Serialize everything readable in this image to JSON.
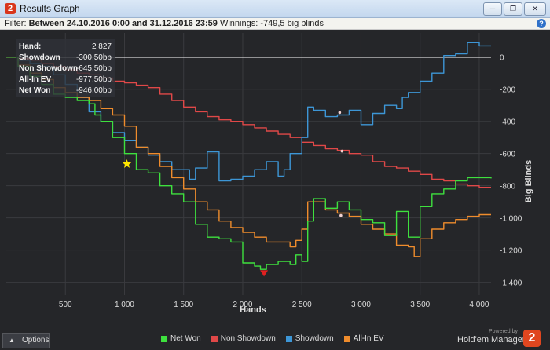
{
  "window": {
    "title": "Results Graph",
    "app_icon": "2"
  },
  "filter_bar": {
    "label": "Filter:",
    "range": "Between 24.10.2016 0:00 and 31.12.2016 23:59",
    "winnings": "Winnings: -749,5 big blinds"
  },
  "stats_panel": [
    {
      "key": "Hand:",
      "value": "2 827"
    },
    {
      "key": "Showdown",
      "value": "-300,50bb"
    },
    {
      "key": "Non Showdown",
      "value": "-645,50bb"
    },
    {
      "key": "All-In EV",
      "value": "-977,50bb"
    },
    {
      "key": "Net Won",
      "value": "-946,00bb"
    }
  ],
  "footer": {
    "options_label": "Options",
    "powered_by": "Powered by",
    "brand": "Hold'em Manager",
    "brand_icon": "2"
  },
  "colors": {
    "net_won": "#3ee03e",
    "non_showdown": "#e04848",
    "showdown": "#3d96d6",
    "all_in_ev": "#ef8c2c",
    "background": "#252629",
    "zero_line": "#ffffff",
    "grid": "#3a3b3f"
  },
  "icons": {
    "minimize": "minimize-icon",
    "restore": "restore-icon",
    "close": "close-icon",
    "help": "help-icon",
    "options": "chevron-up-icon"
  },
  "chart_data": {
    "type": "line",
    "xlabel": "Hands",
    "ylabel": "Big Blinds",
    "xlim": [
      0,
      4100
    ],
    "ylim": [
      -1480,
      150
    ],
    "xticks": [
      500,
      1000,
      1500,
      2000,
      2500,
      3000,
      3500,
      4000
    ],
    "xtick_labels": [
      "500",
      "1 000",
      "1 500",
      "2 000",
      "2 500",
      "3 000",
      "3 500",
      "4 000"
    ],
    "yticks": [
      0,
      -200,
      -400,
      -600,
      -800,
      -1000,
      -1200,
      -1400
    ],
    "ytick_labels": [
      "0",
      "-200",
      "-400",
      "-600",
      "-800",
      "-1 000",
      "-1 200",
      "-1 400"
    ],
    "grid": true,
    "legend_placement": "bottom",
    "series": [
      {
        "name": "Net Won",
        "color": "#3ee03e",
        "x": [
          0,
          100,
          200,
          300,
          400,
          500,
          600,
          700,
          750,
          800,
          900,
          1000,
          1100,
          1200,
          1300,
          1400,
          1500,
          1600,
          1700,
          1800,
          1900,
          2000,
          2100,
          2150,
          2200,
          2300,
          2400,
          2450,
          2500,
          2550,
          2600,
          2700,
          2800,
          2900,
          3000,
          3100,
          3200,
          3300,
          3400,
          3500,
          3600,
          3700,
          3800,
          3900,
          4000,
          4100
        ],
        "y": [
          0,
          -60,
          -120,
          -170,
          -230,
          -250,
          -270,
          -290,
          -360,
          -400,
          -500,
          -600,
          -700,
          -720,
          -800,
          -850,
          -900,
          -1040,
          -1120,
          -1130,
          -1150,
          -1280,
          -1300,
          -1320,
          -1290,
          -1270,
          -1290,
          -1230,
          -1270,
          -1020,
          -880,
          -940,
          -900,
          -950,
          -1010,
          -1030,
          -1110,
          -960,
          -1120,
          -930,
          -850,
          -820,
          -770,
          -750,
          -750,
          -755
        ]
      },
      {
        "name": "Non Showdown",
        "color": "#e04848",
        "x": [
          0,
          100,
          200,
          300,
          400,
          500,
          600,
          700,
          800,
          900,
          1000,
          1100,
          1200,
          1300,
          1400,
          1500,
          1600,
          1700,
          1800,
          1900,
          2000,
          2100,
          2200,
          2300,
          2400,
          2500,
          2600,
          2700,
          2800,
          2900,
          3000,
          3100,
          3200,
          3300,
          3400,
          3500,
          3600,
          3700,
          3800,
          3900,
          4000,
          4100
        ],
        "y": [
          0,
          -10,
          -20,
          -40,
          -60,
          -80,
          -100,
          -110,
          -130,
          -150,
          -160,
          -175,
          -190,
          -230,
          -270,
          -310,
          -340,
          -370,
          -390,
          -400,
          -420,
          -440,
          -460,
          -480,
          -500,
          -530,
          -550,
          -570,
          -580,
          -600,
          -610,
          -650,
          -680,
          -690,
          -710,
          -730,
          -760,
          -770,
          -790,
          -800,
          -810,
          -810
        ]
      },
      {
        "name": "Showdown",
        "color": "#3d96d6",
        "x": [
          0,
          100,
          200,
          300,
          400,
          500,
          600,
          700,
          800,
          900,
          1000,
          1100,
          1200,
          1300,
          1400,
          1500,
          1550,
          1600,
          1700,
          1800,
          1900,
          2000,
          2100,
          2200,
          2300,
          2350,
          2400,
          2500,
          2550,
          2600,
          2700,
          2800,
          2900,
          3000,
          3100,
          3200,
          3300,
          3350,
          3400,
          3500,
          3600,
          3700,
          3800,
          3900,
          4000,
          4100
        ],
        "y": [
          0,
          -20,
          -40,
          -60,
          -110,
          -170,
          -250,
          -340,
          -400,
          -470,
          -520,
          -560,
          -610,
          -650,
          -700,
          -700,
          -760,
          -690,
          -590,
          -770,
          -760,
          -740,
          -700,
          -650,
          -740,
          -700,
          -600,
          -500,
          -310,
          -330,
          -370,
          -360,
          -330,
          -420,
          -350,
          -300,
          -320,
          -250,
          -220,
          -150,
          -100,
          10,
          20,
          90,
          70,
          70
        ]
      },
      {
        "name": "All-In EV",
        "color": "#ef8c2c",
        "x": [
          0,
          100,
          200,
          300,
          400,
          500,
          600,
          700,
          800,
          900,
          1000,
          1100,
          1200,
          1300,
          1400,
          1500,
          1600,
          1700,
          1800,
          1900,
          2000,
          2100,
          2200,
          2300,
          2400,
          2450,
          2500,
          2550,
          2600,
          2700,
          2800,
          2900,
          3000,
          3100,
          3200,
          3300,
          3400,
          3450,
          3500,
          3600,
          3700,
          3800,
          3900,
          4000,
          4100
        ],
        "y": [
          0,
          -50,
          -100,
          -140,
          -190,
          -220,
          -250,
          -270,
          -320,
          -360,
          -430,
          -560,
          -600,
          -680,
          -750,
          -820,
          -900,
          -950,
          -1020,
          -1060,
          -1090,
          -1120,
          -1150,
          -1150,
          -1180,
          -1140,
          -1070,
          -900,
          -900,
          -950,
          -970,
          -990,
          -1040,
          -1070,
          -1100,
          -1170,
          -1180,
          -1240,
          -1130,
          -1070,
          -1030,
          -1010,
          -990,
          -980,
          -980
        ]
      }
    ],
    "markers": [
      {
        "kind": "star",
        "x": 1020,
        "y": -665,
        "color": "#ffe600"
      },
      {
        "kind": "triangle-down",
        "x": 2180,
        "y": -1345,
        "color": "#e02020"
      },
      {
        "kind": "dot",
        "x": 2820,
        "y": -345,
        "color": "#f0d0d0"
      },
      {
        "kind": "dot",
        "x": 2840,
        "y": -585,
        "color": "#f0d0d0"
      },
      {
        "kind": "dot",
        "x": 2830,
        "y": -985,
        "color": "#f0d0d0"
      }
    ]
  }
}
